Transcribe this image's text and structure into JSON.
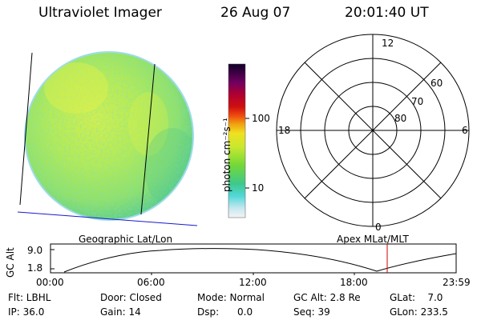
{
  "header": {
    "instrument": "Ultraviolet Imager",
    "date": "26 Aug 07",
    "time": "20:01:40 UT"
  },
  "colorbar": {
    "unit_label": "photon cm⁻²s⁻¹",
    "ticks": [
      "100",
      "10"
    ]
  },
  "polar_plot": {
    "mlt_labels": [
      "12",
      "18",
      "6",
      "0"
    ],
    "lat_labels": [
      "60",
      "70",
      "80"
    ]
  },
  "altitude_plot": {
    "left_caption": "Geographic Lat/Lon",
    "right_caption": "Apex MLat/MLT",
    "y_axis_label": "GC Alt",
    "y_ticks": [
      "9.0",
      "1.8"
    ],
    "x_ticks": [
      "00:00",
      "06:00",
      "12:00",
      "18:00",
      "23:59"
    ]
  },
  "info": {
    "flt": "Flt: LBHL",
    "ip": "IP: 36.0",
    "door": "Door: Closed",
    "gain": "Gain: 14",
    "mode": "Mode: Normal",
    "dsp": "Dsp:      0.0",
    "gc_alt": "GC Alt: 2.8 Re",
    "seq": "Seq: 39",
    "glat": "GLat:    7.0",
    "glon": "GLon: 233.5"
  },
  "colors": {
    "disk_base": "#a6e85a",
    "disk_light": "#d8f04a",
    "disk_dark": "#5fd07a",
    "limb": "#3aa0d0",
    "orbit_marker": "#cc0000",
    "horizon_line": "#0000cc"
  }
}
